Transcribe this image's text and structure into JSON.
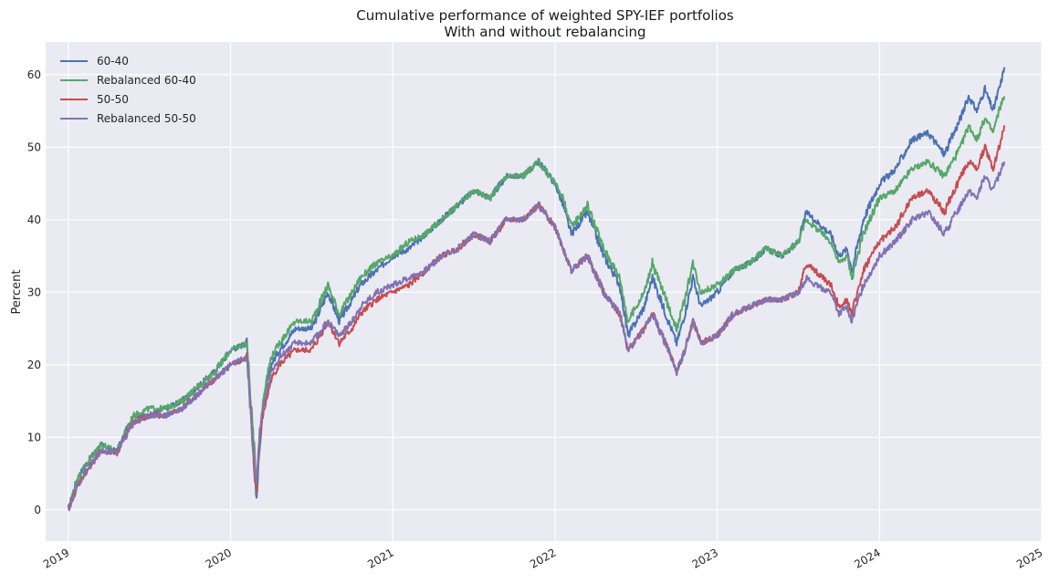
{
  "chart_data": {
    "type": "line",
    "title": "Cumulative performance of weighted SPY-IEF portfolios",
    "subtitle": "With and without rebalancing",
    "xlabel": "",
    "ylabel": "Percent",
    "xlim": [
      2018.86,
      2025.0
    ],
    "ylim": [
      -4.3,
      64.5
    ],
    "x_ticks": [
      2019,
      2020,
      2021,
      2022,
      2023,
      2024,
      2025
    ],
    "x_tick_labels": [
      "2019",
      "2020",
      "2021",
      "2022",
      "2023",
      "2024",
      "2025"
    ],
    "y_ticks": [
      0,
      10,
      20,
      30,
      40,
      50,
      60
    ],
    "y_tick_labels": [
      "0",
      "10",
      "20",
      "30",
      "40",
      "50",
      "60"
    ],
    "grid": true,
    "legend_position": "top-left",
    "background": "#eaeaf2",
    "x": [
      2019.0,
      2019.05,
      2019.1,
      2019.2,
      2019.3,
      2019.4,
      2019.5,
      2019.6,
      2019.7,
      2019.8,
      2019.9,
      2020.0,
      2020.1,
      2020.15,
      2020.16,
      2020.18,
      2020.2,
      2020.22,
      2020.25,
      2020.3,
      2020.4,
      2020.5,
      2020.6,
      2020.67,
      2020.75,
      2020.8,
      2020.9,
      2021.0,
      2021.1,
      2021.2,
      2021.3,
      2021.4,
      2021.5,
      2021.6,
      2021.7,
      2021.8,
      2021.9,
      2022.0,
      2022.05,
      2022.1,
      2022.2,
      2022.3,
      2022.4,
      2022.45,
      2022.55,
      2022.6,
      2022.7,
      2022.75,
      2022.8,
      2022.85,
      2022.9,
      2023.0,
      2023.1,
      2023.2,
      2023.3,
      2023.4,
      2023.5,
      2023.55,
      2023.6,
      2023.7,
      2023.75,
      2023.8,
      2023.83,
      2023.9,
      2024.0,
      2024.1,
      2024.2,
      2024.3,
      2024.4,
      2024.5,
      2024.55,
      2024.6,
      2024.65,
      2024.7,
      2024.75,
      2024.77
    ],
    "series": [
      {
        "name": "60-40",
        "color": "#4c72b0",
        "values": [
          0,
          4,
          6,
          9,
          8,
          13,
          13,
          14,
          15,
          17,
          19,
          22,
          23,
          6,
          1,
          9,
          14,
          17,
          20,
          22,
          25,
          25,
          30,
          26,
          29,
          31,
          33,
          35,
          36,
          38,
          40,
          42,
          44,
          43,
          46,
          46,
          48,
          45,
          42,
          38,
          41,
          35,
          31,
          24,
          28,
          32,
          26,
          23,
          27,
          32,
          28,
          30,
          33,
          34,
          36,
          35,
          37,
          41,
          40,
          38,
          35,
          36,
          33,
          40,
          45,
          47,
          51,
          52,
          49,
          54,
          57,
          55,
          58,
          55,
          59,
          61
        ]
      },
      {
        "name": "Rebalanced 60-40",
        "color": "#55a868",
        "values": [
          0,
          4,
          6,
          9,
          8,
          13,
          14,
          14,
          15,
          17,
          19,
          22,
          23,
          7,
          3,
          10,
          15,
          18,
          21,
          23,
          26,
          26,
          31,
          27,
          30,
          32,
          34,
          35,
          37,
          38,
          40,
          42,
          44,
          43,
          46,
          46,
          48,
          45,
          43,
          39,
          42,
          36,
          32,
          26,
          30,
          34,
          28,
          25,
          29,
          34,
          30,
          31,
          33,
          34,
          36,
          35,
          37,
          40,
          39,
          37,
          34,
          35,
          32,
          38,
          43,
          44,
          47,
          48,
          46,
          50,
          53,
          51,
          54,
          52,
          56,
          57
        ]
      },
      {
        "name": "50-50",
        "color": "#c44e52",
        "values": [
          0,
          3,
          5,
          8,
          8,
          12,
          13,
          13,
          14,
          16,
          18,
          20,
          21,
          4,
          3,
          10,
          13,
          15,
          18,
          20,
          22,
          22,
          26,
          23,
          25,
          27,
          29,
          30,
          31,
          33,
          35,
          36,
          38,
          37,
          40,
          40,
          42,
          39,
          36,
          33,
          35,
          30,
          27,
          22,
          25,
          27,
          22,
          19,
          22,
          26,
          23,
          24,
          27,
          28,
          29,
          29,
          30,
          34,
          33,
          31,
          28,
          29,
          27,
          33,
          37,
          39,
          43,
          44,
          41,
          46,
          48,
          47,
          50,
          47,
          51,
          53
        ]
      },
      {
        "name": "Rebalanced 50-50",
        "color": "#8172b2",
        "values": [
          0,
          3,
          5,
          8,
          8,
          12,
          13,
          13,
          14,
          16,
          18,
          20,
          21,
          5,
          4,
          11,
          14,
          16,
          19,
          21,
          23,
          23,
          26,
          24,
          26,
          28,
          30,
          31,
          32,
          33,
          35,
          36,
          38,
          37,
          40,
          40,
          42,
          39,
          36,
          33,
          35,
          30,
          27,
          22,
          25,
          27,
          22,
          19,
          22,
          26,
          23,
          24,
          27,
          28,
          29,
          29,
          30,
          32,
          31,
          30,
          27,
          28,
          26,
          31,
          35,
          37,
          40,
          41,
          38,
          42,
          44,
          43,
          46,
          44,
          47,
          48
        ]
      }
    ]
  }
}
